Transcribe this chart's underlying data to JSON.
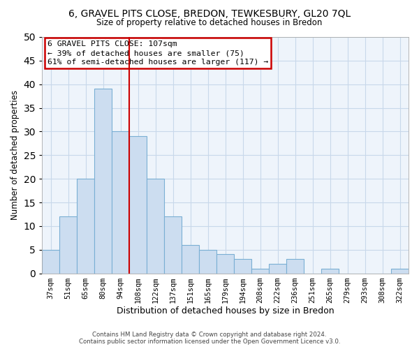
{
  "title": "6, GRAVEL PITS CLOSE, BREDON, TEWKESBURY, GL20 7QL",
  "subtitle": "Size of property relative to detached houses in Bredon",
  "xlabel": "Distribution of detached houses by size in Bredon",
  "ylabel": "Number of detached properties",
  "bar_labels": [
    "37sqm",
    "51sqm",
    "65sqm",
    "80sqm",
    "94sqm",
    "108sqm",
    "122sqm",
    "137sqm",
    "151sqm",
    "165sqm",
    "179sqm",
    "194sqm",
    "208sqm",
    "222sqm",
    "236sqm",
    "251sqm",
    "265sqm",
    "279sqm",
    "293sqm",
    "308sqm",
    "322sqm"
  ],
  "bar_values": [
    5,
    12,
    20,
    39,
    30,
    29,
    20,
    12,
    6,
    5,
    4,
    3,
    1,
    2,
    3,
    0,
    1,
    0,
    0,
    0,
    1
  ],
  "bar_color": "#ccddf0",
  "bar_edge_color": "#7aafd4",
  "vline_x": 4.5,
  "vline_color": "#cc0000",
  "ylim": [
    0,
    50
  ],
  "yticks": [
    0,
    5,
    10,
    15,
    20,
    25,
    30,
    35,
    40,
    45,
    50
  ],
  "annotation_title": "6 GRAVEL PITS CLOSE: 107sqm",
  "annotation_line1": "← 39% of detached houses are smaller (75)",
  "annotation_line2": "61% of semi-detached houses are larger (117) →",
  "annotation_box_color": "#ffffff",
  "annotation_box_edge": "#cc0000",
  "footer_line1": "Contains HM Land Registry data © Crown copyright and database right 2024.",
  "footer_line2": "Contains public sector information licensed under the Open Government Licence v3.0.",
  "bg_color": "#ffffff",
  "plot_bg_color": "#eef4fb",
  "grid_color": "#c8d8ea"
}
